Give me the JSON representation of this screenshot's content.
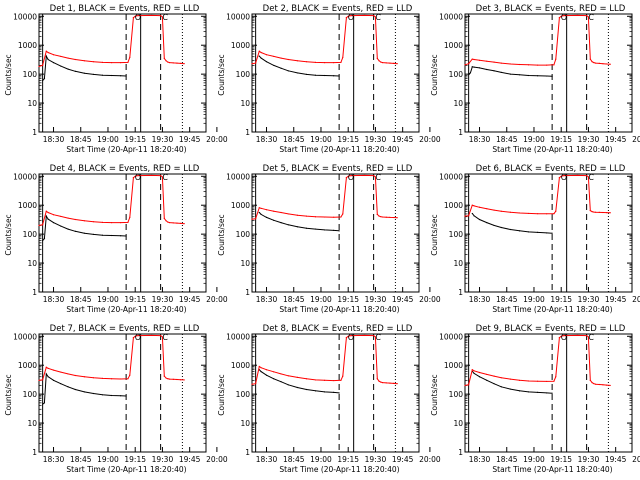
{
  "chart_data": [
    {
      "type": "line",
      "title": "Det 1, BLACK = Events, RED = LLD",
      "xlabel": "Start Time (20-Apr-11 18:20:40)",
      "ylabel": "Counts/sec",
      "xticks": [
        "18:30",
        "18:45",
        "19:00",
        "19:15",
        "19:30",
        "19:45",
        "20:00"
      ],
      "yticks": [
        "1",
        "10",
        "100",
        "1000",
        "10000"
      ],
      "ylim": [
        1,
        12000
      ],
      "markers": [
        "O",
        "C"
      ],
      "series": [
        {
          "color": "#000000",
          "x": [
            2,
            3,
            4,
            5,
            8,
            12,
            16,
            20,
            25,
            30,
            35,
            40,
            45,
            48
          ],
          "y": [
            60,
            70,
            420,
            320,
            250,
            190,
            150,
            125,
            108,
            98,
            92,
            90,
            88,
            86
          ]
        },
        {
          "color": "#ff0000",
          "x": [
            0,
            2,
            4,
            5,
            8,
            12,
            16,
            20,
            25,
            30,
            35,
            40,
            45,
            49,
            50,
            52,
            53,
            54,
            55,
            62,
            67,
            68,
            69,
            70,
            71,
            72,
            74,
            76,
            78,
            80
          ],
          "y": [
            185,
            200,
            620,
            560,
            470,
            410,
            360,
            320,
            290,
            270,
            255,
            250,
            250,
            255,
            380,
            9000,
            10000,
            10500,
            10600,
            10700,
            10600,
            9500,
            350,
            290,
            260,
            250,
            245,
            240,
            235,
            230
          ]
        }
      ]
    },
    {
      "type": "line",
      "title": "Det 2, BLACK = Events, RED = LLD",
      "xlabel": "Start Time (20-Apr-11 18:20:40)",
      "ylabel": "Counts/sec",
      "xticks": [
        "18:30",
        "18:45",
        "19:00",
        "19:15",
        "19:30",
        "19:45",
        "20:00"
      ],
      "yticks": [
        "1",
        "10",
        "100",
        "1000",
        "10000"
      ],
      "ylim": [
        1,
        12000
      ],
      "markers": [
        "O",
        "C"
      ],
      "series": [
        {
          "color": "#000000",
          "x": [
            4,
            5,
            8,
            12,
            16,
            20,
            25,
            30,
            35,
            40,
            45,
            48
          ],
          "y": [
            420,
            360,
            270,
            200,
            160,
            130,
            110,
            98,
            92,
            90,
            88,
            86
          ]
        },
        {
          "color": "#ff0000",
          "x": [
            0,
            2,
            4,
            5,
            8,
            12,
            16,
            20,
            25,
            30,
            35,
            40,
            45,
            49,
            50,
            52,
            53,
            54,
            55,
            62,
            67,
            68,
            69,
            70,
            71,
            72,
            74,
            76,
            78,
            80
          ],
          "y": [
            230,
            240,
            620,
            560,
            470,
            410,
            360,
            320,
            290,
            270,
            255,
            250,
            250,
            255,
            380,
            9000,
            10000,
            10500,
            10600,
            10700,
            10600,
            9500,
            350,
            290,
            260,
            250,
            245,
            240,
            235,
            230
          ]
        }
      ]
    },
    {
      "type": "line",
      "title": "Det 3, BLACK = Events, RED = LLD",
      "xlabel": "Start Time (20-Apr-11 18:20:40)",
      "ylabel": "Counts/sec",
      "xticks": [
        "18:30",
        "18:45",
        "19:00",
        "19:15",
        "19:30",
        "19:45",
        "20:00"
      ],
      "yticks": [
        "1",
        "10",
        "100",
        "1000",
        "10000"
      ],
      "ylim": [
        1,
        12000
      ],
      "markers": [
        "O",
        "C"
      ],
      "series": [
        {
          "color": "#000000",
          "x": [
            2,
            3,
            4,
            5,
            8,
            12,
            16,
            20,
            25,
            30,
            35,
            40,
            45,
            48
          ],
          "y": [
            100,
            110,
            180,
            175,
            165,
            145,
            130,
            115,
            100,
            95,
            90,
            88,
            86,
            85
          ]
        },
        {
          "color": "#ff0000",
          "x": [
            0,
            2,
            4,
            5,
            8,
            12,
            16,
            20,
            25,
            30,
            35,
            40,
            45,
            49,
            50,
            52,
            53,
            54,
            55,
            62,
            67,
            68,
            69,
            70,
            71,
            72,
            74,
            76,
            78,
            80
          ],
          "y": [
            210,
            230,
            330,
            320,
            300,
            280,
            260,
            240,
            225,
            215,
            210,
            205,
            205,
            210,
            330,
            9000,
            10000,
            10500,
            10600,
            10700,
            10600,
            9500,
            330,
            270,
            250,
            240,
            235,
            230,
            225,
            220
          ]
        }
      ]
    },
    {
      "type": "line",
      "title": "Det 4, BLACK = Events, RED = LLD",
      "xlabel": "Start Time (20-Apr-11 18:20:40)",
      "ylabel": "Counts/sec",
      "xticks": [
        "18:30",
        "18:45",
        "19:00",
        "19:15",
        "19:30",
        "19:45",
        "20:00"
      ],
      "yticks": [
        "1",
        "10",
        "100",
        "1000",
        "10000"
      ],
      "ylim": [
        1,
        12000
      ],
      "markers": [
        "O",
        "C"
      ],
      "series": [
        {
          "color": "#000000",
          "x": [
            2,
            3,
            4,
            5,
            8,
            12,
            16,
            20,
            25,
            30,
            35,
            40,
            45,
            48
          ],
          "y": [
            60,
            70,
            420,
            330,
            250,
            190,
            150,
            125,
            108,
            98,
            92,
            90,
            88,
            86
          ]
        },
        {
          "color": "#ff0000",
          "x": [
            0,
            2,
            4,
            5,
            8,
            12,
            16,
            20,
            25,
            30,
            35,
            40,
            45,
            49,
            50,
            52,
            53,
            54,
            55,
            62,
            67,
            68,
            69,
            70,
            71,
            72,
            74,
            76,
            78,
            80
          ],
          "y": [
            200,
            210,
            620,
            560,
            470,
            410,
            360,
            320,
            290,
            270,
            255,
            250,
            250,
            255,
            380,
            9000,
            10000,
            10500,
            10600,
            10700,
            10600,
            9500,
            350,
            290,
            260,
            250,
            245,
            240,
            235,
            230
          ]
        }
      ]
    },
    {
      "type": "line",
      "title": "Det 5, BLACK = Events, RED = LLD",
      "xlabel": "Start Time (20-Apr-11 18:20:40)",
      "ylabel": "Counts/sec",
      "xticks": [
        "18:30",
        "18:45",
        "19:00",
        "19:15",
        "19:30",
        "19:45",
        "20:00"
      ],
      "yticks": [
        "1",
        "10",
        "100",
        "1000",
        "10000"
      ],
      "ylim": [
        1,
        12000
      ],
      "markers": [
        "O",
        "C"
      ],
      "series": [
        {
          "color": "#000000",
          "x": [
            4,
            5,
            8,
            12,
            16,
            20,
            25,
            30,
            35,
            40,
            45,
            48
          ],
          "y": [
            560,
            480,
            380,
            300,
            250,
            210,
            180,
            160,
            150,
            140,
            135,
            130
          ]
        },
        {
          "color": "#ff0000",
          "x": [
            0,
            2,
            4,
            5,
            8,
            12,
            16,
            20,
            25,
            30,
            35,
            40,
            45,
            49,
            50,
            52,
            53,
            54,
            55,
            62,
            67,
            68,
            69,
            70,
            71,
            72,
            74,
            76,
            78,
            80
          ],
          "y": [
            330,
            340,
            820,
            780,
            700,
            620,
            560,
            500,
            450,
            420,
            400,
            390,
            385,
            390,
            500,
            9000,
            10000,
            10500,
            10600,
            10700,
            10600,
            9500,
            480,
            420,
            400,
            390,
            385,
            380,
            375,
            370
          ]
        }
      ]
    },
    {
      "type": "line",
      "title": "Det 6, BLACK = Events, RED = LLD",
      "xlabel": "Start Time (20-Apr-11 18:20:40)",
      "ylabel": "Counts/sec",
      "xticks": [
        "18:30",
        "18:45",
        "19:00",
        "19:15",
        "19:30",
        "19:45",
        "20:00"
      ],
      "yticks": [
        "1",
        "10",
        "100",
        "1000",
        "10000"
      ],
      "ylim": [
        1,
        12000
      ],
      "markers": [
        "O",
        "C"
      ],
      "series": [
        {
          "color": "#000000",
          "x": [
            4,
            5,
            8,
            12,
            16,
            20,
            25,
            30,
            35,
            40,
            45,
            48
          ],
          "y": [
            520,
            430,
            320,
            250,
            200,
            170,
            145,
            130,
            120,
            115,
            110,
            108
          ]
        },
        {
          "color": "#ff0000",
          "x": [
            0,
            2,
            4,
            5,
            8,
            12,
            16,
            20,
            25,
            30,
            35,
            40,
            45,
            49,
            50,
            52,
            53,
            54,
            55,
            62,
            67,
            68,
            69,
            70,
            71,
            72,
            74,
            76,
            78,
            80
          ],
          "y": [
            420,
            430,
            1000,
            950,
            850,
            760,
            680,
            620,
            570,
            540,
            520,
            510,
            505,
            510,
            620,
            9000,
            10000,
            10500,
            10600,
            10700,
            10600,
            9500,
            650,
            600,
            580,
            570,
            565,
            560,
            555,
            550
          ]
        }
      ]
    },
    {
      "type": "line",
      "title": "Det 7, BLACK = Events, RED = LLD",
      "xlabel": "Start Time (20-Apr-11 18:20:40)",
      "ylabel": "Counts/sec",
      "xticks": [
        "18:30",
        "18:45",
        "19:00",
        "19:15",
        "19:30",
        "19:45",
        "20:00"
      ],
      "yticks": [
        "1",
        "10",
        "100",
        "1000",
        "10000"
      ],
      "ylim": [
        1,
        12000
      ],
      "markers": [
        "O",
        "C"
      ],
      "series": [
        {
          "color": "#000000",
          "x": [
            2,
            3,
            4,
            5,
            8,
            12,
            16,
            20,
            25,
            30,
            35,
            40,
            45,
            48
          ],
          "y": [
            45,
            50,
            500,
            400,
            300,
            230,
            180,
            145,
            120,
            105,
            95,
            90,
            88,
            86
          ]
        },
        {
          "color": "#ff0000",
          "x": [
            0,
            2,
            4,
            5,
            8,
            12,
            16,
            20,
            25,
            30,
            35,
            40,
            45,
            49,
            50,
            52,
            53,
            54,
            55,
            62,
            67,
            68,
            69,
            70,
            71,
            72,
            74,
            76,
            78,
            80
          ],
          "y": [
            300,
            310,
            850,
            780,
            680,
            580,
            500,
            440,
            400,
            370,
            350,
            340,
            335,
            340,
            450,
            9000,
            10000,
            10500,
            10600,
            10700,
            10600,
            9500,
            420,
            360,
            340,
            330,
            325,
            320,
            315,
            310
          ]
        }
      ]
    },
    {
      "type": "line",
      "title": "Det 8, BLACK = Events, RED = LLD",
      "xlabel": "Start Time (20-Apr-11 18:20:40)",
      "ylabel": "Counts/sec",
      "xticks": [
        "18:30",
        "18:45",
        "19:00",
        "19:15",
        "19:30",
        "19:45",
        "20:00"
      ],
      "yticks": [
        "1",
        "10",
        "100",
        "1000",
        "10000"
      ],
      "ylim": [
        1,
        12000
      ],
      "markers": [
        "O",
        "C"
      ],
      "series": [
        {
          "color": "#000000",
          "x": [
            4,
            5,
            8,
            12,
            16,
            20,
            25,
            30,
            35,
            40,
            45,
            48
          ],
          "y": [
            700,
            600,
            450,
            340,
            270,
            210,
            170,
            145,
            130,
            120,
            115,
            110
          ]
        },
        {
          "color": "#ff0000",
          "x": [
            0,
            2,
            4,
            5,
            8,
            12,
            16,
            20,
            25,
            30,
            35,
            40,
            45,
            49,
            50,
            52,
            53,
            54,
            55,
            62,
            67,
            68,
            69,
            70,
            71,
            72,
            74,
            76,
            78,
            80
          ],
          "y": [
            220,
            230,
            900,
            820,
            700,
            590,
            500,
            430,
            380,
            340,
            310,
            300,
            295,
            300,
            420,
            9000,
            10000,
            10500,
            10600,
            10700,
            10600,
            9500,
            340,
            280,
            260,
            250,
            245,
            240,
            235,
            230
          ]
        }
      ]
    },
    {
      "type": "line",
      "title": "Det 9, BLACK = Events, RED = LLD",
      "xlabel": "Start Time (20-Apr-11 18:20:40)",
      "ylabel": "Counts/sec",
      "xticks": [
        "18:30",
        "18:45",
        "19:00",
        "19:15",
        "19:30",
        "19:45",
        "20:00"
      ],
      "yticks": [
        "1",
        "10",
        "100",
        "1000",
        "10000"
      ],
      "ylim": [
        1,
        12000
      ],
      "markers": [
        "O",
        "C"
      ],
      "series": [
        {
          "color": "#000000",
          "x": [
            4,
            5,
            8,
            12,
            16,
            20,
            25,
            30,
            35,
            40,
            45,
            48
          ],
          "y": [
            620,
            520,
            400,
            300,
            230,
            180,
            150,
            130,
            120,
            115,
            110,
            108
          ]
        },
        {
          "color": "#ff0000",
          "x": [
            0,
            2,
            4,
            5,
            8,
            12,
            16,
            20,
            25,
            30,
            35,
            40,
            45,
            49,
            50,
            52,
            53,
            54,
            55,
            62,
            67,
            68,
            69,
            70,
            71,
            72,
            74,
            76,
            78,
            80
          ],
          "y": [
            200,
            210,
            700,
            640,
            560,
            480,
            420,
            370,
            330,
            300,
            285,
            280,
            275,
            280,
            400,
            9000,
            10000,
            10500,
            10600,
            10700,
            10600,
            9500,
            300,
            250,
            230,
            220,
            215,
            210,
            205,
            200
          ]
        }
      ]
    }
  ]
}
